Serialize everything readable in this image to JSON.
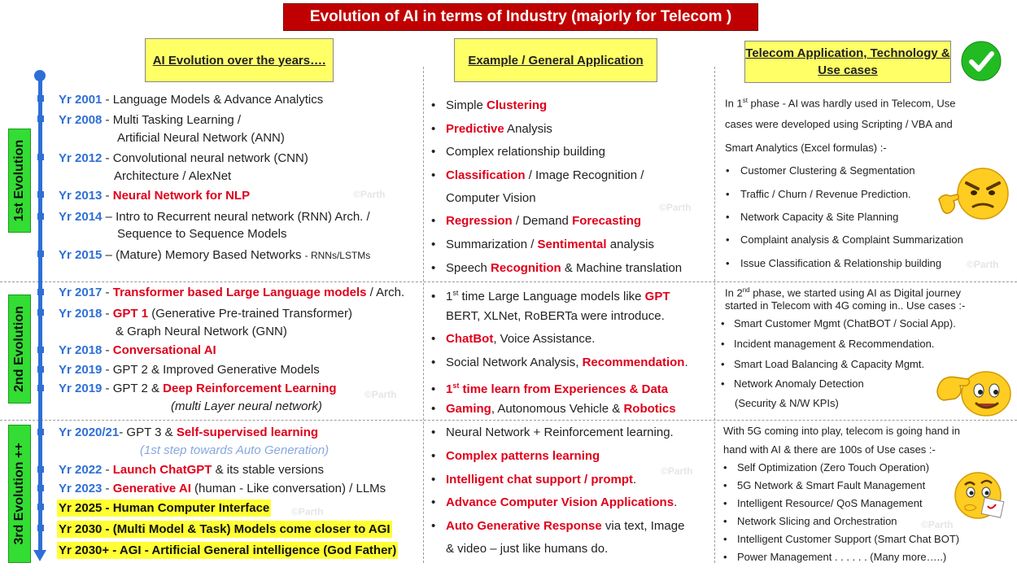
{
  "title": "Evolution of AI in terms of Industry (majorly for Telecom )",
  "headers": {
    "col1": "AI Evolution over the years….",
    "col2": "Example / General Application",
    "col3": "Telecom Application, Technology & Use cases"
  },
  "evolutions": {
    "e1": "1st Evolution",
    "e2": "2nd Evolution",
    "e3": "3rd Evolution ++"
  },
  "watermark": "©Parth",
  "col1": {
    "r1": {
      "y": "Yr 2001",
      "t": " - Language Models & Advance Analytics"
    },
    "r2": {
      "y": "Yr 2008",
      "t": " - Multi Tasking Learning /",
      "t2": "Artificial Neural Network (ANN)"
    },
    "r3": {
      "y": "Yr 2012",
      "t": " - Convolutional neural network (CNN)",
      "t2": "Architecture / AlexNet"
    },
    "r4": {
      "y": "Yr 2013",
      "t": " - ",
      "r": "Neural Network for NLP"
    },
    "r5": {
      "y": "Yr 2014",
      "t": " – Intro to Recurrent neural network (RNN) Arch. /",
      "t2": "Sequence to Sequence Models"
    },
    "r6": {
      "y": "Yr 2015",
      "t": " – (Mature) Memory Based Networks ",
      "s": "- RNNs/LSTMs"
    },
    "r7": {
      "y": "Yr 2017",
      "t": " - ",
      "r": "Transformer based Large Language models",
      "t3": " / Arch."
    },
    "r8": {
      "y": "Yr 2018",
      "t": " - ",
      "r": "GPT 1",
      "t3": " (Generative Pre-trained Transformer)",
      "t2": "& Graph Neural Network (GNN)"
    },
    "r9": {
      "y": "Yr 2018",
      "t": " - ",
      "r": "Conversational AI"
    },
    "r10": {
      "y": "Yr 2019",
      "t": " - GPT 2 & Improved Generative Models"
    },
    "r11": {
      "y": "Yr 2019",
      "t": " - GPT 2 & ",
      "r": "Deep Reinforcement Learning",
      "t2": "(multi Layer neural network)"
    },
    "r12": {
      "y": "Yr 2020/21",
      "t": "- GPT 3 & ",
      "r": "Self-supervised learning",
      "t2": "(1st step towards Auto Generation)"
    },
    "r13": {
      "y": "Yr 2022",
      "t": " - ",
      "r": "Launch ChatGPT",
      "t3": " & its stable versions"
    },
    "r14": {
      "y": "Yr 2023",
      "t": " - ",
      "r": "Generative AI",
      "t3": " (human - Like conversation) / LLMs"
    },
    "r15": {
      "y": "Yr 2025",
      "t": " - Human Computer Interface"
    },
    "r16": {
      "y": "Yr 2030",
      "t": " - (Multi Model & Task) Models come closer to AGI"
    },
    "r17": {
      "y": "Yr 2030+",
      "t": " - AGI - Artificial General intelligence (God Father)"
    }
  },
  "col2": {
    "a1": {
      "t": "Simple ",
      "r": "Clustering"
    },
    "a2": {
      "r": "Predictive",
      "t": " Analysis"
    },
    "a3": {
      "t": "Complex relationship building"
    },
    "a4": {
      "r": "Classification",
      "t": " / Image Recognition /",
      "t2": "Computer Vision"
    },
    "a5": {
      "r": "Regression",
      "t": " / Demand ",
      "r2": "Forecasting"
    },
    "a6": {
      "t": "Summarization / ",
      "r": "Sentimental",
      "t3": " analysis"
    },
    "a7": {
      "t": "Speech ",
      "r": "Recognition",
      "t3": " & Machine translation"
    },
    "b1": {
      "t": "1",
      "sup": "st",
      "t3": " time Large Language models like ",
      "r": "GPT",
      "t2": "BERT, XLNet, RoBERTa were introduce."
    },
    "b2": {
      "r": "ChatBot",
      "t": ", Voice Assistance."
    },
    "b3": {
      "t": "Social Network Analysis, ",
      "r": "Recommendation",
      "t3": "."
    },
    "b4": {
      "r": "1",
      "sup": "st",
      "r2": " time learn from Experiences & Data"
    },
    "b5": {
      "r": "Gaming",
      "t": ", Autonomous Vehicle & ",
      "r2": "Robotics"
    },
    "c1": {
      "t": "Neural Network + Reinforcement learning."
    },
    "c2": {
      "r": "Complex patterns learning"
    },
    "c3": {
      "r": "Intelligent chat support / prompt",
      "t": "."
    },
    "c4": {
      "r": "Advance Computer Vision Applications",
      "t": "."
    },
    "c5": {
      "r": "Auto Generative Response",
      "t": " via text, Image",
      "t2": "& video – just like humans do."
    }
  },
  "col3": {
    "p1": {
      "intro1a": "In 1",
      "intro1sup": "st",
      "intro1b": " phase - AI was hardly used in Telecom, Use",
      "intro2": "cases were developed using Scripting / VBA and",
      "intro3": "Smart Analytics (Excel formulas) :-",
      "items": [
        "Customer Clustering & Segmentation",
        "Traffic / Churn / Revenue Prediction.",
        "Network Capacity & Site Planning",
        "Complaint analysis & Complaint Summarization",
        "Issue Classification & Relationship building"
      ]
    },
    "p2": {
      "intro1a": "In 2",
      "intro1sup": "nd",
      "intro1b": " phase, we started using AI as Digital journey",
      "intro2": "started in Telecom with 4G coming in.. Use cases :-",
      "items": [
        "Smart Customer Mgmt (ChatBOT / Social App).",
        "Incident management & Recommendation.",
        "Smart Load Balancing & Capacity Mgmt.",
        "Network Anomaly Detection"
      ],
      "item4b": "(Security & N/W KPIs)"
    },
    "p3": {
      "intro1": "With 5G coming into play, telecom is going hand in",
      "intro2": "hand with AI & there are 100s of Use cases :-",
      "items": [
        "Self Optimization (Zero Touch Operation)",
        "5G Network & Smart Fault Management",
        "Intelligent Resource/ QoS Management",
        "Network Slicing and Orchestration",
        "Intelligent Customer Support (Smart Chat BOT)",
        "Power Management . . . . . . (Many more…..)"
      ]
    }
  },
  "icons": [
    "check-circle-icon",
    "angry-emoji-icon",
    "thumbs-up-emoji-icon",
    "thinking-emoji-icon",
    "timeline-arrow-icon"
  ],
  "colors": {
    "banner": "#c00000",
    "header_bg": "#ffff66",
    "year_blue": "#2e6fd6",
    "highlight_red": "#e0001b",
    "evolution_green": "#33dd33",
    "check_green": "#22bb22"
  }
}
